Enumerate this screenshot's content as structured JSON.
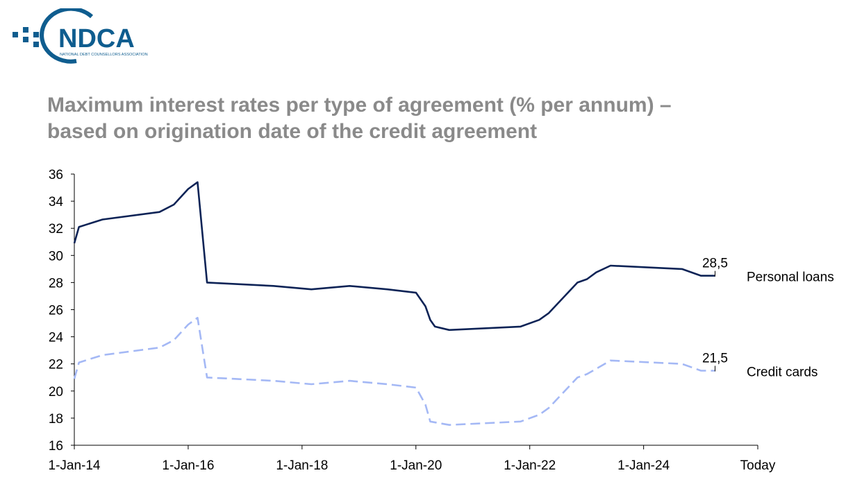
{
  "logo": {
    "name": "NDCA",
    "tagline": "NATIONAL DEBT COUNSELLORS ASSOCIATION",
    "color": "#0f5d8f"
  },
  "title": {
    "line1": "Maximum interest rates per type of agreement (% per annum) –",
    "line2": "based on origination date of the credit agreement"
  },
  "chart_data": {
    "type": "line",
    "title": "Maximum interest rates per type of agreement (% per annum) – based on origination date of the credit agreement",
    "xlabel": "",
    "ylabel": "",
    "xlim": [
      "2014-01-01",
      "Today"
    ],
    "ylim": [
      16,
      36
    ],
    "y_ticks": [
      16,
      18,
      20,
      22,
      24,
      26,
      28,
      30,
      32,
      34,
      36
    ],
    "x_ticks": [
      "1-Jan-14",
      "1-Jan-16",
      "1-Jan-18",
      "1-Jan-20",
      "1-Jan-22",
      "1-Jan-24",
      "Today"
    ],
    "grid": false,
    "legend": "none (series labelled at right end of lines)",
    "series": [
      {
        "name": "Personal loans",
        "color": "#0d2356",
        "style": "solid",
        "end_label": "28,5",
        "points": [
          [
            "2014-01-01",
            30.9
          ],
          [
            "2014-01-31",
            32.1
          ],
          [
            "2014-07-01",
            32.65
          ],
          [
            "2015-07-01",
            33.2
          ],
          [
            "2015-10-01",
            33.75
          ],
          [
            "2016-01-01",
            34.9
          ],
          [
            "2016-03-01",
            35.4
          ],
          [
            "2016-05-01",
            28.0
          ],
          [
            "2017-07-01",
            27.75
          ],
          [
            "2018-03-01",
            27.5
          ],
          [
            "2018-11-01",
            27.75
          ],
          [
            "2019-07-01",
            27.5
          ],
          [
            "2020-01-01",
            27.25
          ],
          [
            "2020-03-01",
            26.25
          ],
          [
            "2020-04-01",
            25.25
          ],
          [
            "2020-05-01",
            24.75
          ],
          [
            "2020-08-01",
            24.5
          ],
          [
            "2021-11-01",
            24.75
          ],
          [
            "2022-03-01",
            25.25
          ],
          [
            "2022-05-01",
            25.75
          ],
          [
            "2022-11-01",
            28.0
          ],
          [
            "2023-01-01",
            28.25
          ],
          [
            "2023-03-01",
            28.75
          ],
          [
            "2023-06-01",
            29.25
          ],
          [
            "2024-09-01",
            29.0
          ],
          [
            "2025-01-01",
            28.5
          ],
          [
            "2025-04-01",
            28.5
          ]
        ]
      },
      {
        "name": "Credit cards",
        "color": "#a4b8f5",
        "style": "dashed",
        "end_label": "21,5",
        "points": [
          [
            "2014-01-01",
            20.9
          ],
          [
            "2014-01-31",
            22.1
          ],
          [
            "2014-07-01",
            22.65
          ],
          [
            "2015-07-01",
            23.2
          ],
          [
            "2015-10-01",
            23.75
          ],
          [
            "2016-01-01",
            24.9
          ],
          [
            "2016-03-01",
            25.4
          ],
          [
            "2016-05-01",
            21.0
          ],
          [
            "2017-07-01",
            20.75
          ],
          [
            "2018-03-01",
            20.5
          ],
          [
            "2018-11-01",
            20.75
          ],
          [
            "2019-07-01",
            20.5
          ],
          [
            "2020-01-01",
            20.25
          ],
          [
            "2020-03-01",
            19.0
          ],
          [
            "2020-04-01",
            17.75
          ],
          [
            "2020-08-01",
            17.5
          ],
          [
            "2021-11-01",
            17.75
          ],
          [
            "2022-03-01",
            18.25
          ],
          [
            "2022-05-01",
            18.75
          ],
          [
            "2022-11-01",
            21.0
          ],
          [
            "2023-01-01",
            21.25
          ],
          [
            "2023-06-01",
            22.25
          ],
          [
            "2024-09-01",
            22.0
          ],
          [
            "2025-01-01",
            21.5
          ],
          [
            "2025-04-01",
            21.5
          ]
        ]
      }
    ]
  }
}
